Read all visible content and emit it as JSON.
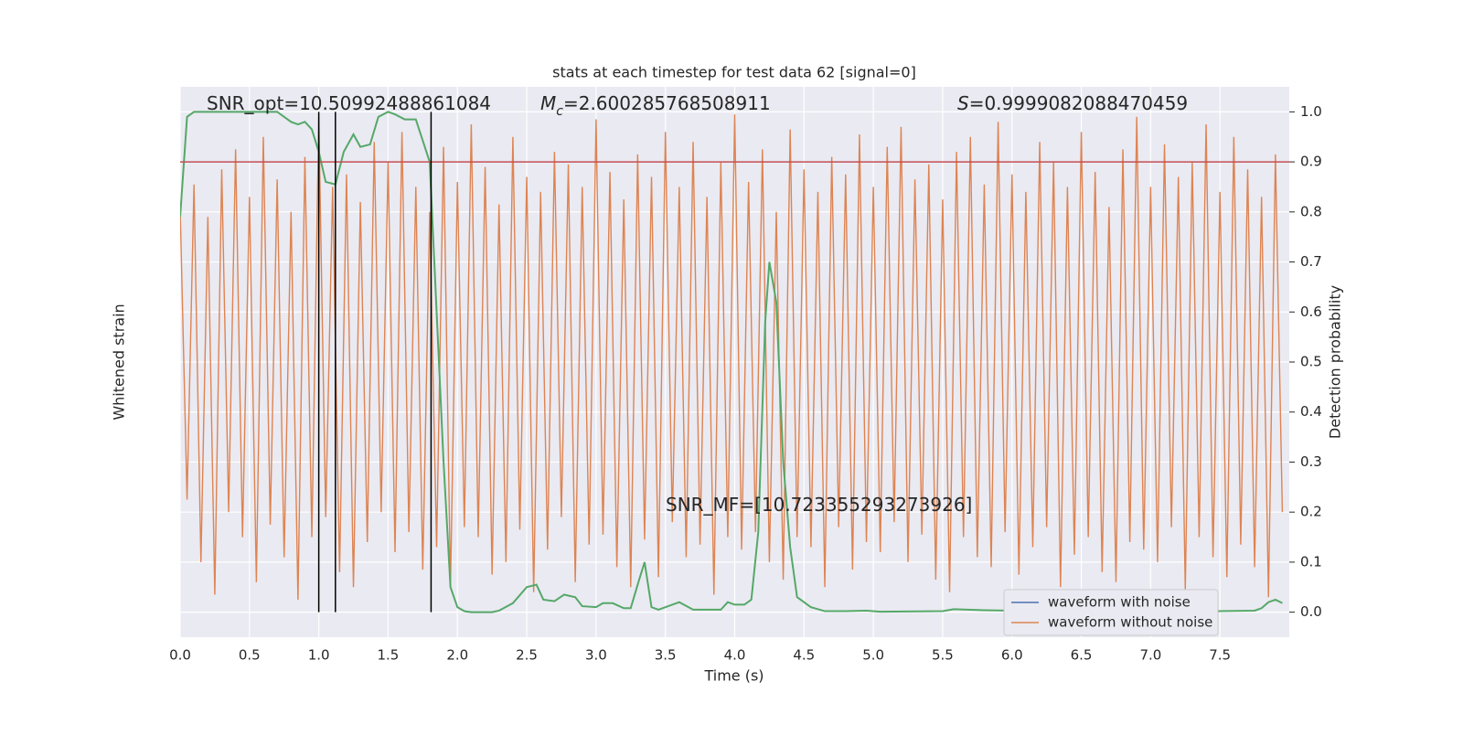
{
  "chart_data": {
    "type": "line",
    "title": "stats at each timestep for test data 62 [signal=0]",
    "xlabel": "Time (s)",
    "ylabel": "Whitened strain",
    "y2label": "Detection probability",
    "xlim": [
      0,
      8.0
    ],
    "ylim": [
      -1.1,
      1.1
    ],
    "y2lim": [
      -0.05,
      1.05
    ],
    "xticks": [
      {
        "value": 0,
        "label": "0.0"
      },
      {
        "value": 0.5,
        "label": "0.5"
      },
      {
        "value": 1,
        "label": "1.0"
      },
      {
        "value": 1.5,
        "label": "1.5"
      },
      {
        "value": 2,
        "label": "2.0"
      },
      {
        "value": 2.5,
        "label": "2.5"
      },
      {
        "value": 3,
        "label": "3.0"
      },
      {
        "value": 3.5,
        "label": "3.5"
      },
      {
        "value": 4,
        "label": "4.0"
      },
      {
        "value": 4.5,
        "label": "4.5"
      },
      {
        "value": 5,
        "label": "5.0"
      },
      {
        "value": 5.5,
        "label": "5.5"
      },
      {
        "value": 6,
        "label": "6.0"
      },
      {
        "value": 6.5,
        "label": "6.5"
      },
      {
        "value": 7,
        "label": "7.0"
      },
      {
        "value": 7.5,
        "label": "7.5"
      }
    ],
    "y2ticks": [
      {
        "value": 0,
        "label": "0.0"
      },
      {
        "value": 0.1,
        "label": "0.1"
      },
      {
        "value": 0.2,
        "label": "0.2"
      },
      {
        "value": 0.3,
        "label": "0.3"
      },
      {
        "value": 0.4,
        "label": "0.4"
      },
      {
        "value": 0.5,
        "label": "0.5"
      },
      {
        "value": 0.6,
        "label": "0.6"
      },
      {
        "value": 0.7,
        "label": "0.7"
      },
      {
        "value": 0.8,
        "label": "0.8"
      },
      {
        "value": 0.9,
        "label": "0.9"
      },
      {
        "value": 1,
        "label": "1.0"
      }
    ],
    "grid": true,
    "annotations": [
      {
        "text": "SNR_opt=10.50992488861084"
      },
      {
        "symbol": "M",
        "subscript": "c",
        "text": "=2.600285768508911"
      },
      {
        "symbol": "S",
        "text": "=0.9999082088470459"
      },
      {
        "text": "SNR_MF=[10.723355293273926]"
      }
    ],
    "hline": {
      "y": 0.9,
      "color": "#c44e52",
      "axis": "y2"
    },
    "vlines": {
      "x": [
        1.0,
        1.12,
        1.81
      ],
      "color": "#000000"
    },
    "legend": {
      "loc": "lower right",
      "entries": [
        {
          "name": "waveform with noise",
          "color": "#4c72b0"
        },
        {
          "name": "waveform without noise",
          "color": "#dd8452"
        }
      ]
    },
    "series": [
      {
        "color": "#dd8452",
        "axis": "y",
        "x": [
          0,
          0.05,
          0.1,
          0.15,
          0.2,
          0.25,
          0.3,
          0.35,
          0.4,
          0.45,
          0.5,
          0.55,
          0.6,
          0.65,
          0.7,
          0.75,
          0.8,
          0.85,
          0.9,
          0.95,
          1,
          1.05,
          1.1,
          1.15,
          1.2,
          1.25,
          1.3,
          1.35,
          1.4,
          1.45,
          1.5,
          1.55,
          1.6,
          1.65,
          1.7,
          1.75,
          1.8,
          1.85,
          1.9,
          1.95,
          2,
          2.05,
          2.1,
          2.15,
          2.2,
          2.25,
          2.3,
          2.35,
          2.4,
          2.45,
          2.5,
          2.55,
          2.6,
          2.65,
          2.7,
          2.75,
          2.8,
          2.85,
          2.9,
          2.95,
          3,
          3.05,
          3.1,
          3.15,
          3.2,
          3.25,
          3.3,
          3.35,
          3.4,
          3.45,
          3.5,
          3.55,
          3.6,
          3.65,
          3.7,
          3.75,
          3.8,
          3.85,
          3.9,
          3.95,
          4,
          4.05,
          4.1,
          4.15,
          4.2,
          4.25,
          4.3,
          4.35,
          4.4,
          4.45,
          4.5,
          4.55,
          4.6,
          4.65,
          4.7,
          4.75,
          4.8,
          4.85,
          4.9,
          4.95,
          5,
          5.05,
          5.1,
          5.15,
          5.2,
          5.25,
          5.3,
          5.35,
          5.4,
          5.45,
          5.5,
          5.55,
          5.6,
          5.65,
          5.7,
          5.75,
          5.8,
          5.85,
          5.9,
          5.95,
          6,
          6.05,
          6.1,
          6.15,
          6.2,
          6.25,
          6.3,
          6.35,
          6.4,
          6.45,
          6.5,
          6.55,
          6.6,
          6.65,
          6.7,
          6.75,
          6.8,
          6.85,
          6.9,
          6.95,
          7,
          7.05,
          7.1,
          7.15,
          7.2,
          7.25,
          7.3,
          7.35,
          7.4,
          7.45,
          7.5,
          7.55,
          7.6,
          7.65,
          7.7,
          7.75,
          7.8,
          7.85,
          7.9,
          7.95
        ],
        "values": [
          0.62,
          -0.55,
          0.71,
          -0.8,
          0.58,
          -0.93,
          0.77,
          -0.6,
          0.85,
          -0.7,
          0.66,
          -0.88,
          0.9,
          -0.65,
          0.73,
          -0.78,
          0.6,
          -0.95,
          0.82,
          -0.7,
          0.98,
          -0.62,
          0.7,
          -0.84,
          0.75,
          -0.9,
          0.64,
          -0.72,
          0.88,
          -0.6,
          0.8,
          -0.76,
          0.92,
          -0.68,
          0.7,
          -0.83,
          0.6,
          -0.74,
          0.86,
          -0.9,
          0.72,
          -0.66,
          0.95,
          -0.7,
          0.78,
          -0.85,
          0.63,
          -0.8,
          0.9,
          -0.67,
          0.74,
          -0.92,
          0.68,
          -0.75,
          0.84,
          -0.62,
          0.79,
          -0.88,
          0.7,
          -0.73,
          0.97,
          -0.69,
          0.76,
          -0.82,
          0.65,
          -0.9,
          0.83,
          -0.71,
          0.74,
          -0.86,
          0.92,
          -0.64,
          0.7,
          -0.78,
          0.88,
          -0.73,
          0.66,
          -0.93,
          0.8,
          -0.7,
          0.99,
          -0.75,
          0.72,
          -0.68,
          0.85,
          -0.8,
          0.6,
          -0.87,
          0.93,
          -0.7,
          0.77,
          -0.74,
          0.68,
          -0.9,
          0.82,
          -0.66,
          0.75,
          -0.83,
          0.91,
          -0.72,
          0.7,
          -0.76,
          0.86,
          -0.64,
          0.94,
          -0.8,
          0.73,
          -0.69,
          0.79,
          -0.87,
          0.65,
          -0.92,
          0.84,
          -0.7,
          0.9,
          -0.78,
          0.71,
          -0.82,
          0.96,
          -0.68,
          0.75,
          -0.85,
          0.68,
          -0.74,
          0.88,
          -0.66,
          0.8,
          -0.9,
          0.7,
          -0.77,
          0.92,
          -0.7,
          0.76,
          -0.84,
          0.62,
          -0.88,
          0.85,
          -0.72,
          0.98,
          -0.75,
          0.7,
          -0.8,
          0.87,
          -0.66,
          0.74,
          -0.91,
          0.8,
          -0.7,
          0.95,
          -0.78,
          0.68,
          -0.86,
          0.9,
          -0.73,
          0.77,
          -0.82,
          0.66,
          -0.94,
          0.83,
          -0.6
        ]
      },
      {
        "color": "#55a868",
        "axis": "y2",
        "x": [
          0,
          0.05,
          0.1,
          0.2,
          0.3,
          0.4,
          0.5,
          0.6,
          0.7,
          0.75,
          0.8,
          0.85,
          0.9,
          0.95,
          1.0,
          1.05,
          1.12,
          1.18,
          1.25,
          1.3,
          1.37,
          1.43,
          1.5,
          1.55,
          1.62,
          1.7,
          1.8,
          1.85,
          1.9,
          1.95,
          2.0,
          2.05,
          2.1,
          2.25,
          2.3,
          2.4,
          2.5,
          2.57,
          2.62,
          2.7,
          2.77,
          2.85,
          2.9,
          3.0,
          3.05,
          3.12,
          3.2,
          3.25,
          3.3,
          3.35,
          3.4,
          3.45,
          3.55,
          3.6,
          3.7,
          3.8,
          3.9,
          3.95,
          4.0,
          4.07,
          4.12,
          4.17,
          4.22,
          4.25,
          4.3,
          4.35,
          4.4,
          4.45,
          4.55,
          4.65,
          4.8,
          4.95,
          5.05,
          5.5,
          5.58,
          5.8,
          6.0,
          6.5,
          7.0,
          7.5,
          7.75,
          7.8,
          7.85,
          7.9,
          7.95
        ],
        "values": [
          0.79,
          0.99,
          1.0,
          1.0,
          1.0,
          1.0,
          1.0,
          1.0,
          1.0,
          0.99,
          0.98,
          0.975,
          0.98,
          0.965,
          0.92,
          0.86,
          0.855,
          0.92,
          0.955,
          0.93,
          0.935,
          0.99,
          1.0,
          0.995,
          0.985,
          0.985,
          0.9,
          0.6,
          0.3,
          0.05,
          0.01,
          0.002,
          0.0,
          0.0,
          0.003,
          0.018,
          0.05,
          0.055,
          0.025,
          0.022,
          0.035,
          0.03,
          0.012,
          0.01,
          0.018,
          0.018,
          0.008,
          0.008,
          0.055,
          0.1,
          0.01,
          0.005,
          0.015,
          0.02,
          0.005,
          0.005,
          0.005,
          0.02,
          0.015,
          0.015,
          0.025,
          0.16,
          0.58,
          0.7,
          0.62,
          0.3,
          0.13,
          0.03,
          0.01,
          0.002,
          0.002,
          0.003,
          0.001,
          0.002,
          0.006,
          0.004,
          0.003,
          0.002,
          0.001,
          0.002,
          0.003,
          0.008,
          0.02,
          0.025,
          0.018
        ]
      }
    ]
  }
}
